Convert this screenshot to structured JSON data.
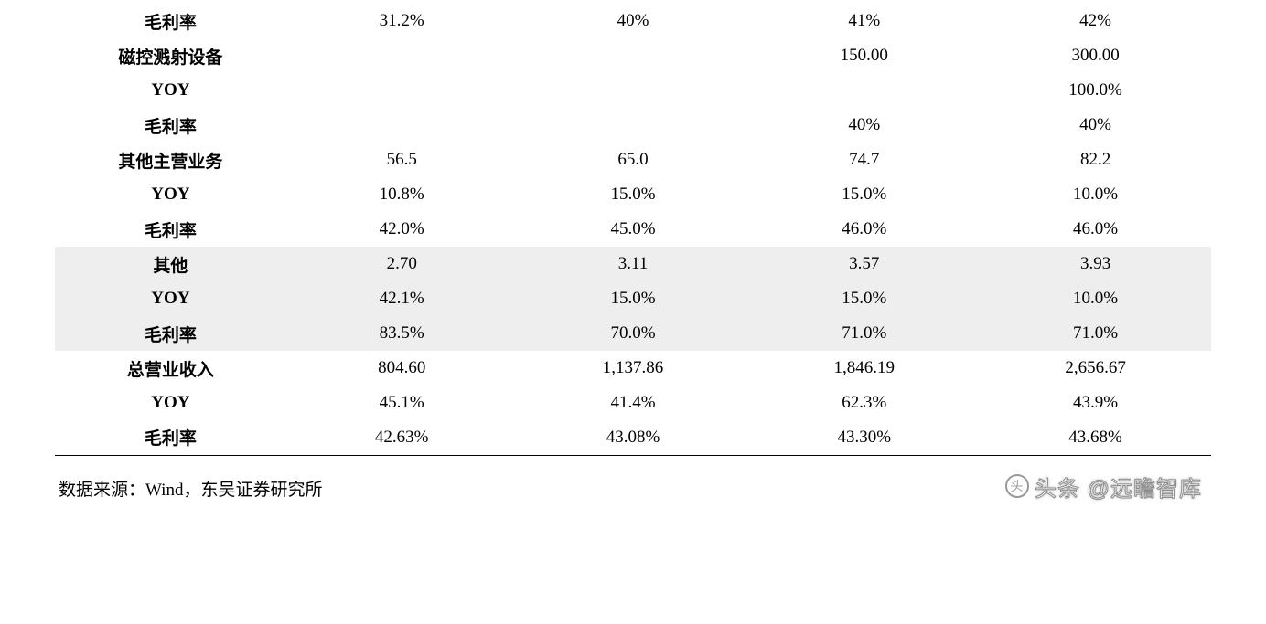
{
  "colors": {
    "shade_bg": "#eeeeee",
    "text": "#000000",
    "bottom_border": "#000000"
  },
  "table": {
    "column_count": 5,
    "rows": [
      {
        "shade": false,
        "label": "毛利率",
        "cells": [
          "31.2%",
          "40%",
          "41%",
          "42%"
        ]
      },
      {
        "shade": false,
        "label": "磁控溅射设备",
        "cells": [
          "",
          "",
          "150.00",
          "300.00"
        ]
      },
      {
        "shade": false,
        "label": "YOY",
        "cells": [
          "",
          "",
          "",
          "100.0%"
        ]
      },
      {
        "shade": false,
        "label": "毛利率",
        "cells": [
          "",
          "",
          "40%",
          "40%"
        ]
      },
      {
        "shade": false,
        "label": "其他主营业务",
        "cells": [
          "56.5",
          "65.0",
          "74.7",
          "82.2"
        ]
      },
      {
        "shade": false,
        "label": "YOY",
        "cells": [
          "10.8%",
          "15.0%",
          "15.0%",
          "10.0%"
        ]
      },
      {
        "shade": false,
        "label": "毛利率",
        "cells": [
          "42.0%",
          "45.0%",
          "46.0%",
          "46.0%"
        ]
      },
      {
        "shade": true,
        "label": "其他",
        "cells": [
          "2.70",
          "3.11",
          "3.57",
          "3.93"
        ]
      },
      {
        "shade": true,
        "label": "YOY",
        "cells": [
          "42.1%",
          "15.0%",
          "15.0%",
          "10.0%"
        ]
      },
      {
        "shade": true,
        "label": "毛利率",
        "cells": [
          "83.5%",
          "70.0%",
          "71.0%",
          "71.0%"
        ]
      },
      {
        "shade": false,
        "label": "总营业收入",
        "cells": [
          "804.60",
          "1,137.86",
          "1,846.19",
          "2,656.67"
        ]
      },
      {
        "shade": false,
        "label": "YOY",
        "cells": [
          "45.1%",
          "41.4%",
          "62.3%",
          "43.9%"
        ]
      },
      {
        "shade": false,
        "label": "毛利率",
        "cells": [
          "42.63%",
          "43.08%",
          "43.30%",
          "43.68%"
        ],
        "bottom_line": true
      }
    ]
  },
  "source": "数据来源：Wind，东吴证券研究所",
  "watermark": "头条 @远瞻智库"
}
